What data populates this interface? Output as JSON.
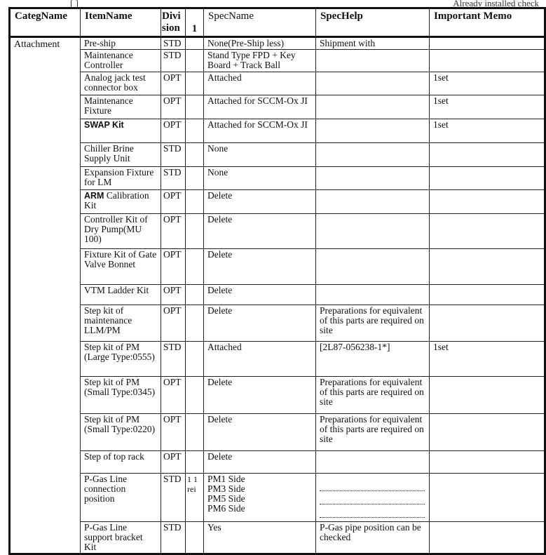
{
  "page_header": {
    "left": "[    ]",
    "right": "Already installed check"
  },
  "columns": [
    "CategName",
    "ItemName",
    "Division",
    "1",
    "SpecName",
    "SpecHelp",
    "Important Memo"
  ],
  "category": "Attachment",
  "rows": [
    {
      "item": "Pre-ship",
      "div": "STD",
      "spec": "None(Pre-Ship less)",
      "help": "Shipment with",
      "memo": ""
    },
    {
      "item": "Maintenance Controller",
      "div": "STD",
      "spec": "Stand Type FPD + Key Board + Track Ball",
      "help": "",
      "memo": ""
    },
    {
      "item": "Analog jack test connector box",
      "div": "OPT",
      "spec": "Attached",
      "help": "",
      "memo": "1set"
    },
    {
      "item": "Maintenance Fixture",
      "div": "OPT",
      "spec": "Attached for SCCM-Ox JI",
      "help": "",
      "memo": "1set"
    },
    {
      "item": "SWAP Kit",
      "div": "OPT",
      "spec": "Attached for SCCM-Ox JI",
      "help": "",
      "memo": "1set"
    },
    {
      "item": "Chiller Brine Supply Unit",
      "div": "STD",
      "spec": "None",
      "help": "",
      "memo": ""
    },
    {
      "item": "Expansion Fixture for LM",
      "div": "STD",
      "spec": "None",
      "help": "",
      "memo": ""
    },
    {
      "item": "ARM Calibration Kit",
      "div": "OPT",
      "spec": "Delete",
      "help": "",
      "memo": ""
    },
    {
      "item": "Controller Kit of Dry Pump(MU 100)",
      "div": "OPT",
      "spec": "Delete",
      "help": "",
      "memo": ""
    },
    {
      "item": "Fixture Kit of Gate Valve Bonnet",
      "div": "OPT",
      "spec": "Delete",
      "help": "",
      "memo": ""
    },
    {
      "item": "VTM Ladder Kit",
      "div": "OPT",
      "spec": "Delete",
      "help": "",
      "memo": ""
    },
    {
      "item": "Step kit of maintenance LLM/PM",
      "div": "OPT",
      "spec": "Delete",
      "help": "Preparations for equivalent of this parts are required on site",
      "memo": ""
    },
    {
      "item": "Step kit of PM (Large Type:0555)",
      "div": "STD",
      "spec": "Attached",
      "help": "[2L87-056238-1*]",
      "memo": "1set"
    },
    {
      "item": "Step kit of PM (Small Type:0345)",
      "div": "OPT",
      "spec": "Delete",
      "help": "Preparations for equivalent of this parts are required on site",
      "memo": ""
    },
    {
      "item": "Step kit of PM (Small Type:0220)",
      "div": "OPT",
      "spec": "Delete",
      "help": "Preparations for equivalent of this parts are required on site",
      "memo": ""
    },
    {
      "item": "Step of top rack",
      "div": "OPT",
      "spec": "Delete",
      "help": "",
      "memo": ""
    },
    {
      "item": "P-Gas Line connection position",
      "div": "STD",
      "col1": "1 1 rei",
      "spec": "PM1 Side\nPM3 Side\nPM5 Side\nPM6 Side",
      "help": "",
      "memo": ""
    },
    {
      "item": "P-Gas Line support bracket Kit",
      "div": "STD",
      "spec": "Yes",
      "help": "P-Gas pipe position can be checked",
      "memo": ""
    }
  ]
}
